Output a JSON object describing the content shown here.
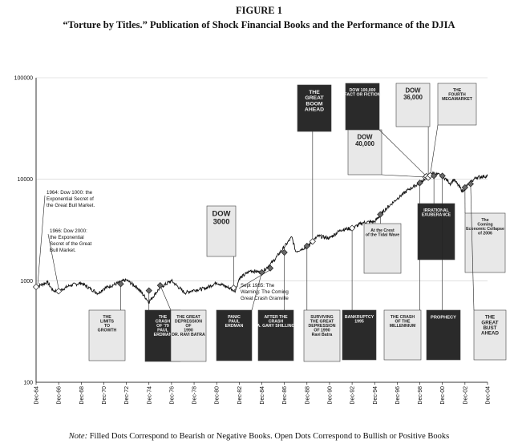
{
  "figure": {
    "title": "FIGURE 1",
    "subtitle": "“Torture by Titles.” Publication of Shock Financial Books and the Performance of the DJIA"
  },
  "note": {
    "prefix": "Note:",
    "text": "Filled Dots Correspond to Bearish or Negative Books. Open Dots Correspond to Bullish or Positive Books"
  },
  "colors": {
    "line": "#111111",
    "grid": "#cccccc",
    "cover_dark": "#2a2a2a",
    "cover_light": "#e8e8e8"
  },
  "chart_data": {
    "type": "line",
    "title": "",
    "xlabel": "",
    "ylabel": "",
    "y_scale": "log",
    "ylim": [
      100,
      100000
    ],
    "yticks": [
      "100",
      "1000",
      "10000",
      "100000"
    ],
    "xlim": [
      "Dec-64",
      "Dec-04"
    ],
    "xticks": [
      "Dec-64",
      "Dec-66",
      "Dec-68",
      "Dec-70",
      "Dec-72",
      "Dec-74",
      "Dec-76",
      "Dec-78",
      "Dec-80",
      "Dec-82",
      "Dec-84",
      "Dec-86",
      "Dec-88",
      "Dec-90",
      "Dec-92",
      "Dec-94",
      "Dec-96",
      "Dec-98",
      "Dec-00",
      "Dec-02",
      "Dec-04"
    ],
    "grid": "horizontal",
    "series": [
      {
        "x": [
          "Dec-64",
          "Dec-65",
          "Jun-66",
          "Dec-66",
          "Dec-67",
          "Dec-68",
          "Jun-70",
          "Dec-70",
          "Dec-72",
          "Dec-73",
          "Dec-74",
          "Dec-75",
          "Dec-76",
          "Feb-78",
          "Dec-78",
          "Dec-79",
          "Dec-80",
          "Aug-82",
          "Dec-82",
          "Dec-83",
          "Dec-84",
          "Dec-85",
          "Aug-87",
          "Dec-87",
          "Dec-88",
          "Dec-89",
          "Dec-90",
          "Dec-91",
          "Dec-92",
          "Dec-93",
          "Dec-94",
          "Dec-95",
          "Dec-96",
          "Dec-97",
          "Dec-98",
          "Jan-00",
          "Dec-00",
          "Sep-01",
          "Dec-01",
          "Oct-02",
          "Dec-02",
          "Dec-03",
          "Dec-04"
        ],
        "values": [
          870,
          970,
          800,
          790,
          900,
          950,
          750,
          840,
          1020,
          850,
          620,
          860,
          1000,
          760,
          810,
          840,
          960,
          800,
          1050,
          1260,
          1210,
          1550,
          2700,
          1940,
          2170,
          2760,
          2630,
          3170,
          3300,
          3750,
          3830,
          5120,
          6450,
          7900,
          9200,
          11500,
          10800,
          9000,
          10020,
          7500,
          8340,
          10450,
          10780
        ]
      }
    ],
    "books": [
      {
        "title": "1964: Dow 1000: the Exponential Secret of the Great Bull Market.",
        "date": "Dec-64",
        "dot": "open",
        "value": 870
      },
      {
        "title": "1966: Dow 2000: the Exponential Secret of the Great Bull Market.",
        "date": "Dec-66",
        "dot": "open",
        "value": 790
      },
      {
        "title": "The Limits to Growth",
        "date": "Jun-72",
        "dot": "filled",
        "value": 930
      },
      {
        "title": "The Crash of '79",
        "date": "Dec-74",
        "dot": "filled",
        "value": 800
      },
      {
        "title": "The Great Depression of 1990",
        "date": "Dec-75",
        "dot": "filled",
        "value": 900
      },
      {
        "title": "Dow 3000",
        "date": "Jun-82",
        "dot": "open",
        "value": 850
      },
      {
        "title": "Sept 1985: The Warning: The Coming Great Crash Granville",
        "date": "Sep-85",
        "dot": "filled",
        "value": 1330
      },
      {
        "title": "Panic — Paul Erdman",
        "date": "Dec-84",
        "dot": "filled",
        "value": 1210
      },
      {
        "title": "After the Crash",
        "date": "Dec-86",
        "dot": "filled",
        "value": 1900
      },
      {
        "title": "Surviving the Great Depression of 1990 — Ravi Batra",
        "date": "Dec-88",
        "dot": "filled",
        "value": 2200
      },
      {
        "title": "The Great Boom Ahead",
        "date": "Jun-89",
        "dot": "open",
        "value": 2440
      },
      {
        "title": "Bankruptcy 1995",
        "date": "Dec-92",
        "dot": "open",
        "value": 3300
      },
      {
        "title": "At the Crest of the Tidal Wave",
        "date": "Jun-95",
        "dot": "filled",
        "value": 4500
      },
      {
        "title": "The Crash of the Millennium",
        "date": "Dec-98",
        "dot": "filled",
        "value": 9200
      },
      {
        "title": "Dow 40000",
        "date": "Jun-99",
        "dot": "open",
        "value": 10500
      },
      {
        "title": "Dow 100,000 Fact or Fiction",
        "date": "Jul-99",
        "dot": "open",
        "value": 10700
      },
      {
        "title": "Dow 36,000",
        "date": "Sep-99",
        "dot": "open",
        "value": 10400
      },
      {
        "title": "The Fourth Megamarket",
        "date": "Nov-99",
        "dot": "open",
        "value": 10900
      },
      {
        "title": "Irrational Exuberance",
        "date": "Mar-00",
        "dot": "filled",
        "value": 10800
      },
      {
        "title": "Prophecy",
        "date": "Dec-00",
        "dot": "filled",
        "value": 10800
      },
      {
        "title": "The Coming Economic Collapse of 2006",
        "date": "Dec-02",
        "dot": "filled",
        "value": 8300
      },
      {
        "title": "The Great Bust Ahead",
        "date": "Jun-03",
        "dot": "filled",
        "value": 9000
      }
    ]
  },
  "annotations": {
    "a1964": [
      "1964: Dow 1000: the",
      "Exponential Secret of",
      "the Great Bull Market."
    ],
    "a1966": [
      "1966: Dow 2000:",
      "the Exponential",
      "Secret of the Great",
      "Bull Market."
    ],
    "a1985": [
      "Sept 1985: The",
      "Warning: The Coming",
      "Great Crash Granville"
    ]
  },
  "covers": [
    {
      "key": "limits",
      "lines": [
        "THE",
        "LIMITS",
        "TO",
        "GROWTH"
      ],
      "style": "light"
    },
    {
      "key": "crash79",
      "lines": [
        "THE",
        "CRASH",
        "OF '79",
        "PAUL",
        "ERDMAN"
      ],
      "style": "dark"
    },
    {
      "key": "gd1990",
      "lines": [
        "THE GREAT",
        "DEPRESSION",
        "OF",
        "1990",
        "DR. RAVI BATRA"
      ],
      "style": "light"
    },
    {
      "key": "dow3000",
      "lines": [
        "DOW",
        "3000"
      ],
      "style": "light"
    },
    {
      "key": "panic",
      "lines": [
        "PANIC",
        "PAUL",
        "ERDMAN"
      ],
      "style": "dark"
    },
    {
      "key": "after",
      "lines": [
        "AFTER THE",
        "CRASH",
        "A. GARY SHILLING"
      ],
      "style": "dark"
    },
    {
      "key": "surviving",
      "lines": [
        "SURVIVING",
        "THE GREAT",
        "DEPRESSION",
        "OF 1990",
        "Ravi Batra"
      ],
      "style": "light"
    },
    {
      "key": "boom",
      "lines": [
        "THE",
        "GREAT",
        "BOOM",
        "AHEAD"
      ],
      "style": "dark"
    },
    {
      "key": "bankrupt",
      "lines": [
        "BANKRUPTCY",
        "1995"
      ],
      "style": "dark"
    },
    {
      "key": "crest",
      "lines": [
        "At the Crest",
        "of the Tidal Wave"
      ],
      "style": "light"
    },
    {
      "key": "millen",
      "lines": [
        "THE CRASH",
        "OF THE",
        "MILLENNIUM"
      ],
      "style": "light"
    },
    {
      "key": "dow100k",
      "lines": [
        "DOW 100,000",
        "FACT OR FICTION"
      ],
      "style": "dark"
    },
    {
      "key": "dow40k",
      "lines": [
        "DOW",
        "40,000"
      ],
      "style": "light"
    },
    {
      "key": "dow36k",
      "lines": [
        "DOW",
        "36,000"
      ],
      "style": "light"
    },
    {
      "key": "fourth",
      "lines": [
        "THE",
        "FOURTH",
        "MEGAMARKET"
      ],
      "style": "light"
    },
    {
      "key": "irrational",
      "lines": [
        "IRRATIONAL",
        "EXUBERANCE"
      ],
      "style": "dark"
    },
    {
      "key": "prophecy",
      "lines": [
        "PROPHECY"
      ],
      "style": "dark"
    },
    {
      "key": "coming",
      "lines": [
        "The",
        "Coming",
        "Economic Collapse",
        "of 2006"
      ],
      "style": "light"
    },
    {
      "key": "bust",
      "lines": [
        "THE",
        "GREAT",
        "BUST",
        "AHEAD"
      ],
      "style": "light"
    }
  ]
}
